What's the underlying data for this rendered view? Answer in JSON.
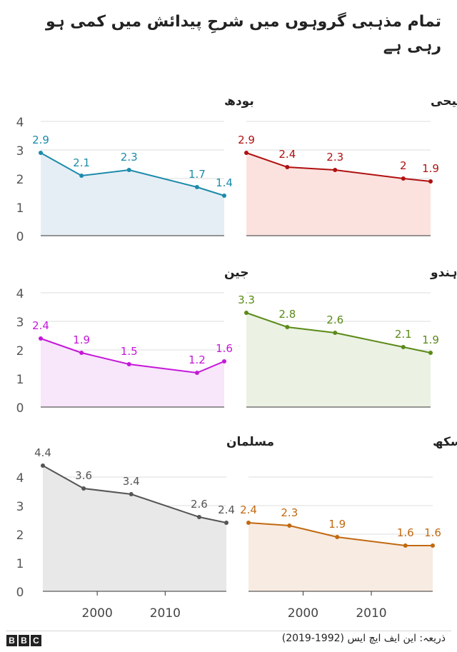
{
  "title": "تمام مذہبی گروہوں میں شرحِ پیدائش میں کمی ہو رہی ہے",
  "source": "ذریعہ: این ایف ایچ ایس (1992-2019)",
  "logo_letters": [
    "B",
    "B",
    "C"
  ],
  "chart_data": [
    {
      "type": "area",
      "name": "بودھ",
      "color": "#1b8bab",
      "fill": "#e6eef5",
      "x": [
        1992,
        1998,
        2005,
        2015,
        2019
      ],
      "values": [
        2.9,
        2.1,
        2.3,
        1.7,
        1.4
      ],
      "labels": [
        "2.9",
        "2.1",
        "2.3",
        "1.7",
        "1.4"
      ],
      "ylim": [
        0,
        4
      ],
      "yticks": [
        "0",
        "1",
        "2",
        "3",
        "4"
      ],
      "xticks": []
    },
    {
      "type": "area",
      "name": "مسیحی",
      "color": "#b01111",
      "fill": "#fbe2df",
      "x": [
        1992,
        1998,
        2005,
        2015,
        2019
      ],
      "values": [
        2.9,
        2.4,
        2.3,
        2.0,
        1.9
      ],
      "labels": [
        "2.9",
        "2.4",
        "2.3",
        "2",
        "1.9"
      ],
      "ylim": [
        0,
        4
      ],
      "yticks": [],
      "xticks": []
    },
    {
      "type": "area",
      "name": "جین",
      "color": "#c518d8",
      "fill": "#f8e6fb",
      "x": [
        1992,
        1998,
        2005,
        2015,
        2019
      ],
      "values": [
        2.4,
        1.9,
        1.5,
        1.2,
        1.6
      ],
      "labels": [
        "2.4",
        "1.9",
        "1.5",
        "1.2",
        "1.6"
      ],
      "ylim": [
        0,
        4
      ],
      "yticks": [
        "0",
        "1",
        "2",
        "3",
        "4"
      ],
      "xticks": []
    },
    {
      "type": "area",
      "name": "ہندو",
      "color": "#5b8a18",
      "fill": "#ebf1e3",
      "x": [
        1992,
        1998,
        2005,
        2015,
        2019
      ],
      "values": [
        3.3,
        2.8,
        2.6,
        2.1,
        1.9
      ],
      "labels": [
        "3.3",
        "2.8",
        "2.6",
        "2.1",
        "1.9"
      ],
      "ylim": [
        0,
        4
      ],
      "yticks": [],
      "xticks": []
    },
    {
      "type": "area",
      "name": "مسلمان",
      "color": "#555555",
      "fill": "#e8e8e8",
      "x": [
        1992,
        1998,
        2005,
        2015,
        2019
      ],
      "values": [
        4.4,
        3.6,
        3.4,
        2.6,
        2.4
      ],
      "labels": [
        "4.4",
        "3.6",
        "3.4",
        "2.6",
        "2.4"
      ],
      "ylim": [
        0,
        4
      ],
      "yticks": [
        "0",
        "1",
        "2",
        "3",
        "4"
      ],
      "xticks": [
        "2000",
        "2010"
      ]
    },
    {
      "type": "area",
      "name": "سکھ",
      "color": "#c16910",
      "fill": "#f8ebe2",
      "x": [
        1992,
        1998,
        2005,
        2015,
        2019
      ],
      "values": [
        2.4,
        2.3,
        1.9,
        1.6,
        1.6
      ],
      "labels": [
        "2.4",
        "2.3",
        "1.9",
        "1.6",
        "1.6"
      ],
      "ylim": [
        0,
        4
      ],
      "yticks": [],
      "xticks": [
        "2000",
        "2010"
      ]
    }
  ]
}
